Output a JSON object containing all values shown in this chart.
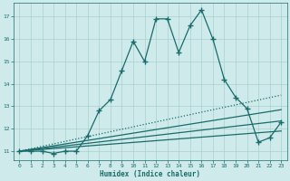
{
  "bg_color": "#ceeaea",
  "grid_color": "#aad0d0",
  "line_color": "#1a6b6b",
  "xlabel": "Humidex (Indice chaleur)",
  "xlim": [
    -0.5,
    23.5
  ],
  "ylim": [
    10.6,
    17.6
  ],
  "yticks": [
    11,
    12,
    13,
    14,
    15,
    16,
    17
  ],
  "xticks": [
    0,
    1,
    2,
    3,
    4,
    5,
    6,
    7,
    8,
    9,
    10,
    11,
    12,
    13,
    14,
    15,
    16,
    17,
    18,
    19,
    20,
    21,
    22,
    23
  ],
  "line_main": {
    "x": [
      0,
      1,
      2,
      3,
      4,
      5,
      6,
      7,
      8,
      9,
      10,
      11,
      12,
      13,
      14,
      15,
      16,
      17,
      18,
      19,
      20,
      21,
      22,
      23
    ],
    "y": [
      11.0,
      11.0,
      11.0,
      10.9,
      11.0,
      11.0,
      11.7,
      12.8,
      13.3,
      14.6,
      15.9,
      15.0,
      16.9,
      16.9,
      15.4,
      16.6,
      17.3,
      16.0,
      14.2,
      13.4,
      12.9,
      11.4,
      11.6,
      12.3
    ]
  },
  "line_dotted": {
    "x": [
      0,
      23
    ],
    "y": [
      11.0,
      13.5
    ]
  },
  "line_solid1": {
    "x": [
      0,
      23
    ],
    "y": [
      11.0,
      12.85
    ]
  },
  "line_solid2": {
    "x": [
      0,
      23
    ],
    "y": [
      11.0,
      12.35
    ]
  },
  "line_solid3": {
    "x": [
      0,
      23
    ],
    "y": [
      11.0,
      11.9
    ]
  }
}
